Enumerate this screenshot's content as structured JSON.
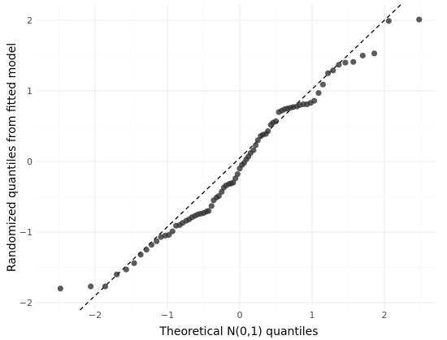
{
  "chart_data": {
    "type": "scatter",
    "title": "",
    "xlabel": "Theoretical N(0,1) quantiles",
    "ylabel": "Randomized quantiles from fitted model",
    "xlim": [
      -2.6,
      2.6
    ],
    "ylim": [
      -2.0,
      2.2
    ],
    "x_ticks": [
      -2,
      -1,
      0,
      1,
      2
    ],
    "y_ticks": [
      -2,
      -1,
      0,
      1,
      2
    ],
    "x_tick_labels": [
      "−2",
      "−1",
      "0",
      "1",
      "2"
    ],
    "y_tick_labels": [
      "−2",
      "−1",
      "0",
      "1",
      "2"
    ],
    "grid": true,
    "point_color": "#333333",
    "point_alpha": 0.8,
    "reference_line": {
      "style": "dashed",
      "color": "#000000",
      "intercept": 0.05,
      "slope": 0.975
    },
    "points": [
      [
        -2.48,
        -1.8
      ],
      [
        -2.06,
        -1.77
      ],
      [
        -1.86,
        -1.77
      ],
      [
        -1.7,
        -1.6
      ],
      [
        -1.57,
        -1.53
      ],
      [
        -1.46,
        -1.44
      ],
      [
        -1.37,
        -1.32
      ],
      [
        -1.29,
        -1.25
      ],
      [
        -1.22,
        -1.18
      ],
      [
        -1.15,
        -1.13
      ],
      [
        -1.09,
        -1.07
      ],
      [
        -1.03,
        -1.05
      ],
      [
        -0.98,
        -1.04
      ],
      [
        -0.93,
        -0.99
      ],
      [
        -0.88,
        -0.91
      ],
      [
        -0.83,
        -0.9
      ],
      [
        -0.79,
        -0.87
      ],
      [
        -0.74,
        -0.84
      ],
      [
        -0.7,
        -0.82
      ],
      [
        -0.66,
        -0.79
      ],
      [
        -0.62,
        -0.77
      ],
      [
        -0.58,
        -0.75
      ],
      [
        -0.54,
        -0.74
      ],
      [
        -0.5,
        -0.73
      ],
      [
        -0.46,
        -0.71
      ],
      [
        -0.43,
        -0.7
      ],
      [
        -0.39,
        -0.63
      ],
      [
        -0.36,
        -0.55
      ],
      [
        -0.32,
        -0.51
      ],
      [
        -0.29,
        -0.49
      ],
      [
        -0.25,
        -0.43
      ],
      [
        -0.22,
        -0.37
      ],
      [
        -0.19,
        -0.34
      ],
      [
        -0.15,
        -0.32
      ],
      [
        -0.12,
        -0.31
      ],
      [
        -0.09,
        -0.3
      ],
      [
        -0.06,
        -0.24
      ],
      [
        -0.03,
        -0.18
      ],
      [
        0.0,
        -0.1
      ],
      [
        0.03,
        -0.05
      ],
      [
        0.06,
        -0.02
      ],
      [
        0.09,
        0.03
      ],
      [
        0.12,
        0.07
      ],
      [
        0.15,
        0.12
      ],
      [
        0.19,
        0.16
      ],
      [
        0.22,
        0.23
      ],
      [
        0.25,
        0.3
      ],
      [
        0.29,
        0.36
      ],
      [
        0.32,
        0.38
      ],
      [
        0.36,
        0.39
      ],
      [
        0.39,
        0.43
      ],
      [
        0.43,
        0.52
      ],
      [
        0.46,
        0.55
      ],
      [
        0.5,
        0.57
      ],
      [
        0.54,
        0.7
      ],
      [
        0.58,
        0.72
      ],
      [
        0.62,
        0.74
      ],
      [
        0.66,
        0.75
      ],
      [
        0.7,
        0.76
      ],
      [
        0.74,
        0.77
      ],
      [
        0.79,
        0.78
      ],
      [
        0.83,
        0.8
      ],
      [
        0.88,
        0.81
      ],
      [
        0.93,
        0.81
      ],
      [
        0.98,
        0.83
      ],
      [
        1.03,
        0.86
      ],
      [
        1.09,
        0.97
      ],
      [
        1.15,
        1.09
      ],
      [
        1.22,
        1.25
      ],
      [
        1.29,
        1.29
      ],
      [
        1.37,
        1.37
      ],
      [
        1.46,
        1.4
      ],
      [
        1.57,
        1.41
      ],
      [
        1.7,
        1.5
      ],
      [
        1.86,
        1.53
      ],
      [
        2.06,
        1.99
      ],
      [
        2.48,
        2.01
      ]
    ]
  }
}
